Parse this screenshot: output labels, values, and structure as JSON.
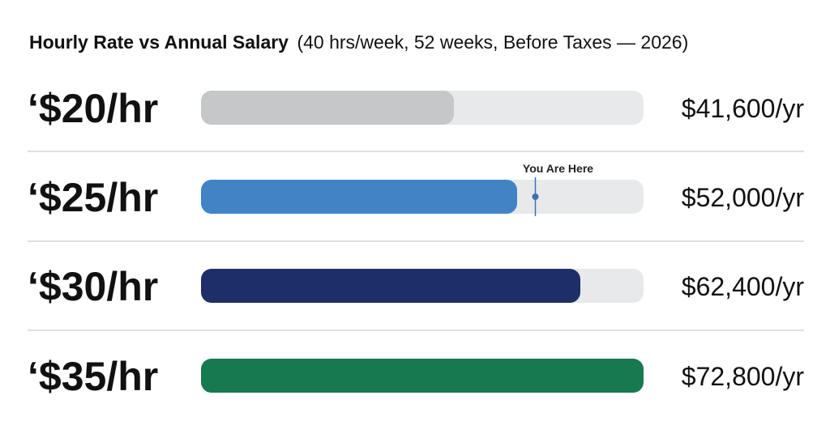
{
  "title": {
    "main": "Hourly Rate vs Annual Salary",
    "sub": "(40 hrs/week, 52 weeks, Before Taxes — 2026)"
  },
  "marker": {
    "label": "You Are Here",
    "row": 1,
    "value": 55000
  },
  "chart_data": {
    "type": "bar",
    "orientation": "horizontal",
    "title": "Hourly Rate vs Annual Salary (40 hrs/week, 52 weeks, Before Taxes — 2026)",
    "categories": [
      "‘$20/hr",
      "‘$25/hr",
      "‘$30/hr",
      "‘$35/hr"
    ],
    "values": [
      41600,
      52000,
      62400,
      72800
    ],
    "value_labels": [
      "$41,600/yr",
      "$52,000/yr",
      "$62,400/yr",
      "$72,800/yr"
    ],
    "colors": [
      "#c6c7c9",
      "#4283c6",
      "#1e2f68",
      "#17794f"
    ],
    "track_color": "#e8e9eb",
    "divider_color": "#d6d6d6",
    "xlim": [
      0,
      72800
    ],
    "grid": false,
    "legend": "none"
  }
}
